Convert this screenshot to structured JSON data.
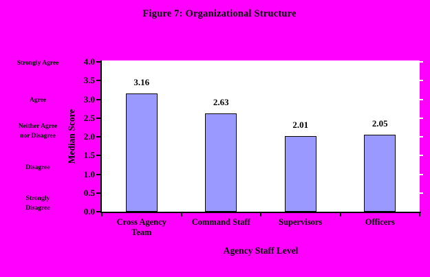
{
  "chart_data": {
    "type": "bar",
    "title": "Figure 7: Organizational Structure",
    "xlabel": "Agency Staff Level",
    "ylabel": "Median Score",
    "categories": [
      "Cross Agency\nTeam",
      "Command Staff",
      "Supervisors",
      "Officers"
    ],
    "values": [
      3.16,
      2.63,
      2.01,
      2.05
    ],
    "value_labels": [
      "3.16",
      "2.63",
      "2.01",
      "2.05"
    ],
    "ylim": [
      0,
      4
    ],
    "yticks": [
      "4.0",
      "3.5",
      "3.0",
      "2.5",
      "2.0",
      "1.5",
      "1.0",
      "0.5",
      "0.0"
    ],
    "scale_labels": [
      {
        "text": "Strongly Agree",
        "value": 3.96
      },
      {
        "text": "Agree",
        "value": 2.97
      },
      {
        "text": "Neither Agree\nnor Disagree",
        "value": 2.14
      },
      {
        "text": "Disagree",
        "value": 1.17
      },
      {
        "text": "Strongly\nDisagree",
        "value": 0.22
      }
    ],
    "legend": "none",
    "grid": false,
    "colors": {
      "background": "#FF00FF",
      "plot_background": "#FFFFFF",
      "bar_fill": "#9999FF",
      "bar_border": "#000000",
      "axis": "#000000",
      "text": "#000000"
    }
  }
}
